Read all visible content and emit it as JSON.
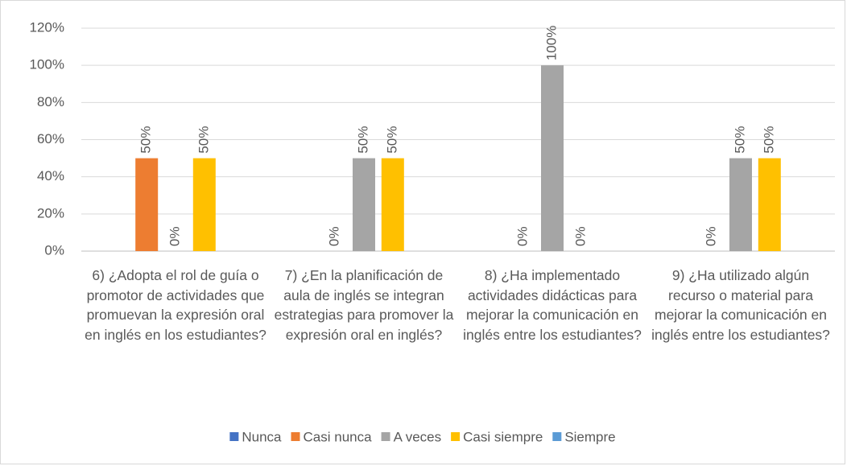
{
  "chart_data": {
    "type": "bar",
    "categories": [
      "6) ¿Adopta el rol de guía o promotor de actividades que promuevan la expresión oral en inglés en los estudiantes?",
      "7) ¿En la planificación de aula de inglés se integran estrategias para promover la expresión oral en inglés?",
      "8) ¿Ha implementado actividades didácticas para mejorar la comunicación en inglés entre los estudiantes?",
      "9) ¿Ha utilizado algún recurso o material para mejorar la comunicación en inglés entre los estudiantes?"
    ],
    "series": [
      {
        "name": "Nunca",
        "color": "#4472c4",
        "values": [
          null,
          null,
          null,
          null
        ],
        "value_labels": [
          null,
          null,
          null,
          null
        ]
      },
      {
        "name": "Casi nunca",
        "color": "#ed7d31",
        "values": [
          50,
          0,
          0,
          0
        ],
        "value_labels": [
          "50%",
          "0%",
          "0%",
          "0%"
        ]
      },
      {
        "name": "A veces",
        "color": "#a5a5a5",
        "values": [
          0,
          50,
          100,
          50
        ],
        "value_labels": [
          "0%",
          "50%",
          "100%",
          "50%"
        ]
      },
      {
        "name": "Casi siempre",
        "color": "#ffc000",
        "values": [
          50,
          50,
          0,
          50
        ],
        "value_labels": [
          "50%",
          "50%",
          "0%",
          "50%"
        ]
      },
      {
        "name": "Siempre",
        "color": "#5b9bd5",
        "values": [
          null,
          null,
          null,
          null
        ],
        "value_labels": [
          null,
          null,
          null,
          null
        ]
      }
    ],
    "ylim": [
      0,
      120
    ],
    "yticks": [
      {
        "value": 0,
        "label": "0%"
      },
      {
        "value": 20,
        "label": "20%"
      },
      {
        "value": 40,
        "label": "40%"
      },
      {
        "value": 60,
        "label": "60%"
      },
      {
        "value": 80,
        "label": "80%"
      },
      {
        "value": 100,
        "label": "100%"
      },
      {
        "value": 120,
        "label": "120%"
      }
    ],
    "grid": true,
    "legend": "bottom"
  }
}
